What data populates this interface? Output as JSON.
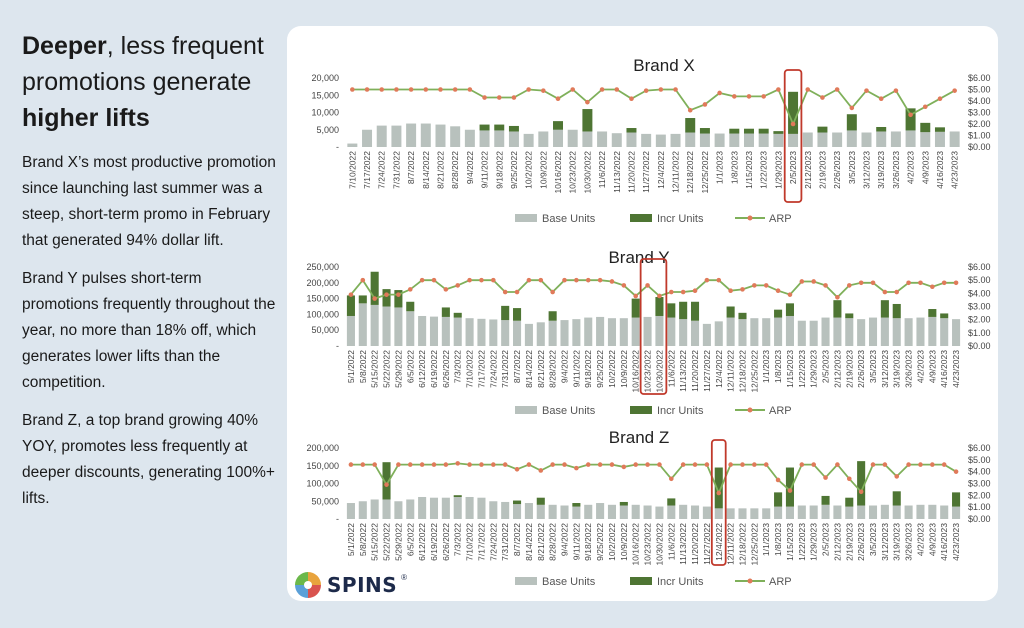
{
  "headline": {
    "part1": "Deeper",
    "part2": ", less frequent promotions generate ",
    "part3": "higher lifts"
  },
  "paragraphs": [
    "Brand X’s most productive promotion since launching last summer was a steep, short-term promo in February that generated 94% dollar lift.",
    "Brand Y pulses short-term promotions frequently throughout the year, no more than 18% off, which generates lower lifts than the competition.",
    "Brand Z, a top brand growing 40% YOY, promotes less frequently at deeper discounts, generating 100%+ lifts."
  ],
  "logo": {
    "text": "SPINS",
    "mark": "®"
  },
  "colors": {
    "base": "#b8c1bd",
    "incr": "#4e7533",
    "arp_line": "#7fb05a",
    "arp_marker": "#e07a5a",
    "highlight": "#c0392b",
    "logo_colors": [
      "#e8a33d",
      "#d9534f",
      "#5aa0d8",
      "#6bb84a"
    ]
  },
  "chart_data": [
    {
      "type": "bar",
      "title": "Brand X",
      "x": [
        "7/10/2022",
        "7/17/2022",
        "7/24/2022",
        "7/31/2022",
        "8/7/2022",
        "8/14/2022",
        "8/21/2022",
        "8/28/2022",
        "9/4/2022",
        "9/11/2022",
        "9/18/2022",
        "9/25/2022",
        "10/2/2022",
        "10/9/2022",
        "10/16/2022",
        "10/23/2022",
        "10/30/2022",
        "11/6/2022",
        "11/13/2022",
        "11/20/2022",
        "11/27/2022",
        "12/4/2022",
        "12/11/2022",
        "12/18/2022",
        "12/25/2022",
        "1/1/2023",
        "1/8/2023",
        "1/15/2023",
        "1/22/2023",
        "1/29/2023",
        "2/5/2023",
        "2/12/2023",
        "2/19/2023",
        "2/26/2023",
        "3/5/2023",
        "3/12/2023",
        "3/19/2023",
        "3/26/2023",
        "4/2/2023",
        "4/9/2023",
        "4/16/2023",
        "4/23/2023"
      ],
      "series": [
        {
          "name": "Base Units",
          "values": [
            1000,
            5000,
            6200,
            6200,
            6800,
            6800,
            6500,
            6000,
            5000,
            4800,
            4800,
            4500,
            3800,
            4500,
            5000,
            5000,
            4500,
            4500,
            4000,
            4200,
            3800,
            3600,
            3800,
            4200,
            3900,
            3900,
            3900,
            3900,
            3900,
            3800,
            3800,
            4200,
            4200,
            4200,
            4800,
            4200,
            4500,
            4500,
            4800,
            4300,
            4400,
            4500
          ]
        },
        {
          "name": "Incr Units",
          "values": [
            0,
            0,
            0,
            0,
            0,
            0,
            0,
            0,
            0,
            1700,
            1700,
            1600,
            0,
            0,
            2500,
            0,
            6500,
            0,
            0,
            1300,
            0,
            0,
            0,
            4200,
            1600,
            0,
            1400,
            1400,
            1400,
            800,
            12200,
            0,
            1700,
            0,
            4700,
            0,
            1300,
            0,
            6400,
            2700,
            1300,
            0
          ]
        },
        {
          "name": "ARP",
          "values": [
            5.0,
            5.0,
            5.0,
            5.0,
            5.0,
            5.0,
            5.0,
            5.0,
            5.0,
            4.3,
            4.3,
            4.3,
            5.0,
            4.9,
            4.2,
            5.0,
            3.9,
            5.0,
            5.0,
            4.2,
            4.9,
            5.0,
            5.0,
            3.2,
            3.7,
            4.7,
            4.4,
            4.4,
            4.4,
            5.0,
            2.0,
            5.0,
            4.3,
            5.0,
            3.4,
            4.9,
            4.2,
            4.9,
            2.8,
            3.5,
            4.2,
            4.9
          ]
        }
      ],
      "ylim": [
        0,
        20000
      ],
      "ytick_values": [
        0,
        5000,
        10000,
        15000,
        20000
      ],
      "ytick_labels": [
        "-",
        "5,000",
        "10,000",
        "15,000",
        "20,000"
      ],
      "y2lim": [
        0,
        6
      ],
      "y2tick_values": [
        0,
        1,
        2,
        3,
        4,
        5,
        6
      ],
      "y2tick_labels": [
        "$0.00",
        "$1.00",
        "$2.00",
        "$3.00",
        "$4.00",
        "$5.00",
        "$6.00"
      ],
      "highlight_x": "2/5/2023",
      "legend": [
        "Base Units",
        "Incr Units",
        "ARP"
      ]
    },
    {
      "type": "bar",
      "title": "Brand Y",
      "x": [
        "5/1/2022",
        "5/8/2022",
        "5/15/2022",
        "5/22/2022",
        "5/29/2022",
        "6/5/2022",
        "6/12/2022",
        "6/19/2022",
        "6/26/2022",
        "7/3/2022",
        "7/10/2022",
        "7/17/2022",
        "7/24/2022",
        "7/31/2022",
        "8/7/2022",
        "8/14/2022",
        "8/21/2022",
        "8/28/2022",
        "9/4/2022",
        "9/11/2022",
        "9/18/2022",
        "9/25/2022",
        "10/2/2022",
        "10/9/2022",
        "10/16/2022",
        "10/23/2022",
        "10/30/2022",
        "11/6/2022",
        "11/13/2022",
        "11/20/2022",
        "11/27/2022",
        "12/4/2022",
        "12/11/2022",
        "12/18/2022",
        "12/25/2022",
        "1/1/2023",
        "1/8/2023",
        "1/15/2023",
        "1/22/2023",
        "1/29/2023",
        "2/5/2023",
        "2/12/2023",
        "2/19/2023",
        "2/26/2023",
        "3/5/2023",
        "3/12/2023",
        "3/19/2023",
        "3/26/2023",
        "4/2/2023",
        "4/9/2023",
        "4/16/2023",
        "4/23/2023"
      ],
      "series": [
        {
          "name": "Base Units",
          "values": [
            95000,
            135000,
            130000,
            125000,
            122000,
            110000,
            95000,
            93000,
            92000,
            90000,
            88000,
            86000,
            84000,
            82000,
            80000,
            70000,
            75000,
            80000,
            82000,
            85000,
            90000,
            92000,
            88000,
            88000,
            90000,
            92000,
            95000,
            90000,
            85000,
            80000,
            70000,
            78000,
            90000,
            85000,
            88000,
            88000,
            90000,
            95000,
            80000,
            80000,
            90000,
            90000,
            88000,
            85000,
            90000,
            90000,
            88000,
            88000,
            90000,
            92000,
            88000,
            85000
          ]
        },
        {
          "name": "Incr Units",
          "values": [
            65000,
            25000,
            105000,
            55000,
            55000,
            30000,
            0,
            0,
            30000,
            15000,
            0,
            0,
            0,
            45000,
            40000,
            0,
            0,
            30000,
            0,
            0,
            0,
            0,
            0,
            0,
            60000,
            0,
            60000,
            45000,
            55000,
            60000,
            0,
            0,
            35000,
            20000,
            0,
            0,
            25000,
            40000,
            0,
            0,
            0,
            55000,
            15000,
            0,
            0,
            55000,
            45000,
            0,
            0,
            25000,
            15000,
            0
          ]
        },
        {
          "name": "ARP",
          "values": [
            3.9,
            5.0,
            3.6,
            3.9,
            3.9,
            4.3,
            5.0,
            5.0,
            4.3,
            4.6,
            5.0,
            5.0,
            5.0,
            4.1,
            4.1,
            5.0,
            5.0,
            4.1,
            5.0,
            5.0,
            5.0,
            5.0,
            4.9,
            4.6,
            3.8,
            4.6,
            3.8,
            4.1,
            4.1,
            4.2,
            5.0,
            5.0,
            4.2,
            4.3,
            4.6,
            4.6,
            4.2,
            3.9,
            4.9,
            4.9,
            4.6,
            3.7,
            4.6,
            4.8,
            4.8,
            4.1,
            4.1,
            4.8,
            4.8,
            4.5,
            4.8,
            4.8
          ]
        }
      ],
      "ylim": [
        0,
        250000
      ],
      "ytick_values": [
        0,
        50000,
        100000,
        150000,
        200000,
        250000
      ],
      "ytick_labels": [
        "-",
        "50,000",
        "100,000",
        "150,000",
        "200,000",
        "250,000"
      ],
      "y2lim": [
        0,
        6
      ],
      "y2tick_values": [
        0,
        1,
        2,
        3,
        4,
        5,
        6
      ],
      "y2tick_labels": [
        "$0.00",
        "$1.00",
        "$2.00",
        "$3.00",
        "$4.00",
        "$5.00",
        "$6.00"
      ],
      "highlight_x": [
        "10/23/2022",
        "10/30/2022"
      ],
      "legend": [
        "Base Units",
        "Incr Units",
        "ARP"
      ]
    },
    {
      "type": "bar",
      "title": "Brand Z",
      "x": [
        "5/1/2022",
        "5/8/2022",
        "5/15/2022",
        "5/22/2022",
        "5/29/2022",
        "6/5/2022",
        "6/12/2022",
        "6/19/2022",
        "6/26/2022",
        "7/3/2022",
        "7/10/2022",
        "7/17/2022",
        "7/24/2022",
        "7/31/2022",
        "8/7/2022",
        "8/14/2022",
        "8/21/2022",
        "8/28/2022",
        "9/4/2022",
        "9/11/2022",
        "9/18/2022",
        "9/25/2022",
        "10/2/2022",
        "10/9/2022",
        "10/16/2022",
        "10/23/2022",
        "10/30/2022",
        "11/6/2022",
        "11/13/2022",
        "11/20/2022",
        "11/27/2022",
        "12/4/2022",
        "12/11/2022",
        "12/18/2022",
        "12/25/2022",
        "1/1/2023",
        "1/8/2023",
        "1/15/2023",
        "1/22/2023",
        "1/29/2023",
        "2/5/2023",
        "2/12/2023",
        "2/19/2023",
        "2/26/2023",
        "3/5/2023",
        "3/12/2023",
        "3/19/2023",
        "3/26/2023",
        "4/2/2023",
        "4/9/2023",
        "4/16/2023",
        "4/23/2023"
      ],
      "series": [
        {
          "name": "Base Units",
          "values": [
            45000,
            50000,
            55000,
            55000,
            50000,
            55000,
            62000,
            60000,
            60000,
            62000,
            62000,
            60000,
            50000,
            48000,
            42000,
            45000,
            40000,
            40000,
            38000,
            35000,
            40000,
            45000,
            40000,
            38000,
            40000,
            38000,
            35000,
            38000,
            40000,
            38000,
            35000,
            30000,
            30000,
            30000,
            30000,
            30000,
            35000,
            35000,
            38000,
            38000,
            40000,
            38000,
            35000,
            38000,
            38000,
            40000,
            38000,
            38000,
            40000,
            40000,
            38000,
            35000
          ]
        },
        {
          "name": "Incr Units",
          "values": [
            0,
            0,
            0,
            105000,
            0,
            0,
            0,
            0,
            0,
            5000,
            0,
            0,
            0,
            0,
            10000,
            0,
            20000,
            0,
            0,
            10000,
            0,
            0,
            0,
            10000,
            0,
            0,
            0,
            20000,
            0,
            0,
            0,
            115000,
            0,
            0,
            0,
            0,
            40000,
            110000,
            0,
            0,
            25000,
            0,
            25000,
            125000,
            0,
            0,
            40000,
            0,
            0,
            0,
            0,
            40000
          ]
        },
        {
          "name": "ARP",
          "values": [
            4.6,
            4.6,
            4.6,
            2.9,
            4.6,
            4.6,
            4.6,
            4.6,
            4.6,
            4.7,
            4.6,
            4.6,
            4.6,
            4.6,
            4.2,
            4.6,
            4.1,
            4.6,
            4.6,
            4.3,
            4.6,
            4.6,
            4.6,
            4.4,
            4.6,
            4.6,
            4.6,
            3.4,
            4.6,
            4.6,
            4.6,
            2.2,
            4.6,
            4.6,
            4.6,
            4.6,
            3.3,
            2.4,
            4.6,
            4.6,
            3.5,
            4.6,
            3.4,
            2.3,
            4.6,
            4.6,
            3.6,
            4.6,
            4.6,
            4.6,
            4.6,
            4.0
          ]
        }
      ],
      "ylim": [
        0,
        200000
      ],
      "ytick_values": [
        0,
        50000,
        100000,
        150000,
        200000
      ],
      "ytick_labels": [
        "-",
        "50,000",
        "100,000",
        "150,000",
        "200,000"
      ],
      "y2lim": [
        0,
        6
      ],
      "y2tick_values": [
        0,
        1,
        2,
        3,
        4,
        5,
        6
      ],
      "y2tick_labels": [
        "$0.00",
        "$1.00",
        "$2.00",
        "$3.00",
        "$4.00",
        "$5.00",
        "$6.00"
      ],
      "highlight_x": "12/4/2022",
      "legend": [
        "Base Units",
        "Incr Units",
        "ARP"
      ]
    }
  ]
}
